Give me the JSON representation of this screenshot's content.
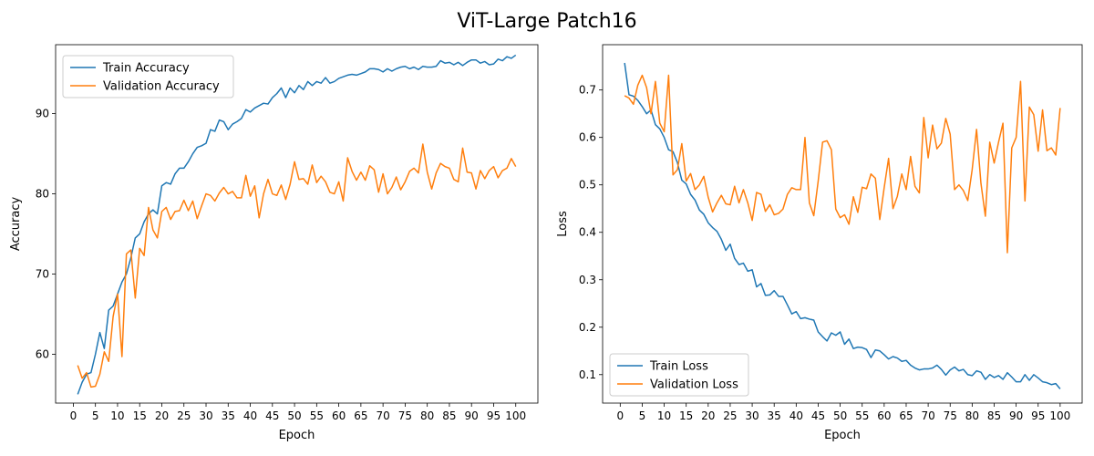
{
  "figure": {
    "suptitle": "ViT-Large Patch16"
  },
  "colors": {
    "train": "#1f77b4",
    "validation": "#ff7f0e"
  },
  "chart_data": [
    {
      "type": "line",
      "xlabel": "Epoch",
      "ylabel": "Accuracy",
      "xlim": [
        -4,
        105
      ],
      "ylim": [
        53.9,
        98.6
      ],
      "xticks": [
        0,
        5,
        10,
        15,
        20,
        25,
        30,
        35,
        40,
        45,
        50,
        55,
        60,
        65,
        70,
        75,
        80,
        85,
        90,
        95,
        100
      ],
      "yticks": [
        60,
        70,
        80,
        90
      ],
      "legend_position": "top-left",
      "grid": false,
      "series": [
        {
          "name": "Train Accuracy",
          "color": "#1f77b4",
          "x": [
            1,
            2,
            3,
            4,
            5,
            6,
            7,
            8,
            9,
            10,
            11,
            12,
            13,
            14,
            15,
            16,
            17,
            18,
            19,
            20,
            21,
            22,
            23,
            24,
            25,
            26,
            27,
            28,
            29,
            30,
            31,
            32,
            33,
            34,
            35,
            36,
            37,
            38,
            39,
            40,
            41,
            42,
            43,
            44,
            45,
            46,
            47,
            48,
            49,
            50,
            51,
            52,
            53,
            54,
            55,
            56,
            57,
            58,
            59,
            60,
            61,
            62,
            63,
            64,
            65,
            66,
            67,
            68,
            69,
            70,
            71,
            72,
            73,
            74,
            75,
            76,
            77,
            78,
            79,
            80,
            81,
            82,
            83,
            84,
            85,
            86,
            87,
            88,
            89,
            90,
            91,
            92,
            93,
            94,
            95,
            96,
            97,
            98,
            99,
            100
          ],
          "y": [
            55.0,
            56.5,
            57.5,
            57.7,
            60.0,
            62.7,
            60.7,
            65.5,
            66.0,
            67.5,
            69.0,
            70.0,
            72.0,
            74.5,
            75.0,
            76.5,
            77.5,
            78.0,
            77.5,
            81.0,
            81.4,
            81.2,
            82.5,
            83.2,
            83.2,
            84.0,
            85.0,
            85.8,
            86.0,
            86.3,
            88.0,
            87.8,
            89.2,
            89.0,
            88.0,
            88.7,
            89.0,
            89.4,
            90.5,
            90.2,
            90.7,
            91.0,
            91.3,
            91.2,
            92.0,
            92.5,
            93.2,
            92.0,
            93.2,
            92.6,
            93.5,
            93.0,
            94.0,
            93.5,
            94.0,
            93.8,
            94.5,
            93.8,
            94.0,
            94.4,
            94.6,
            94.8,
            94.9,
            94.8,
            95.0,
            95.2,
            95.6,
            95.6,
            95.5,
            95.2,
            95.6,
            95.3,
            95.6,
            95.8,
            95.9,
            95.6,
            95.8,
            95.5,
            95.9,
            95.8,
            95.8,
            95.9,
            96.6,
            96.3,
            96.4,
            96.1,
            96.4,
            96.0,
            96.4,
            96.7,
            96.7,
            96.3,
            96.5,
            96.1,
            96.2,
            96.8,
            96.6,
            97.1,
            96.9,
            97.3
          ]
        },
        {
          "name": "Validation Accuracy",
          "color": "#ff7f0e",
          "x": [
            1,
            2,
            3,
            4,
            5,
            6,
            7,
            8,
            9,
            10,
            11,
            12,
            13,
            14,
            15,
            16,
            17,
            18,
            19,
            20,
            21,
            22,
            23,
            24,
            25,
            26,
            27,
            28,
            29,
            30,
            31,
            32,
            33,
            34,
            35,
            36,
            37,
            38,
            39,
            40,
            41,
            42,
            43,
            44,
            45,
            46,
            47,
            48,
            49,
            50,
            51,
            52,
            53,
            54,
            55,
            56,
            57,
            58,
            59,
            60,
            61,
            62,
            63,
            64,
            65,
            66,
            67,
            68,
            69,
            70,
            71,
            72,
            73,
            74,
            75,
            76,
            77,
            78,
            79,
            80,
            81,
            82,
            83,
            84,
            85,
            86,
            87,
            88,
            89,
            90,
            91,
            92,
            93,
            94,
            95,
            96,
            97,
            98,
            99,
            100
          ],
          "y": [
            58.6,
            57.0,
            57.7,
            55.9,
            56.0,
            57.5,
            60.3,
            59.1,
            64.7,
            67.5,
            59.7,
            72.5,
            73.0,
            67.0,
            73.2,
            72.3,
            78.3,
            75.5,
            74.5,
            77.8,
            78.3,
            76.8,
            77.8,
            77.9,
            79.2,
            77.9,
            79.1,
            76.9,
            78.5,
            80.0,
            79.8,
            79.1,
            80.1,
            80.8,
            80.0,
            80.3,
            79.5,
            79.5,
            82.3,
            79.7,
            81.0,
            77.0,
            80.0,
            81.8,
            80.0,
            79.8,
            81.1,
            79.3,
            81.2,
            84.0,
            81.8,
            81.9,
            81.2,
            83.6,
            81.4,
            82.2,
            81.5,
            80.2,
            80.0,
            81.5,
            79.1,
            84.5,
            82.8,
            81.7,
            82.7,
            81.7,
            83.5,
            83.0,
            80.2,
            82.5,
            80.0,
            80.8,
            82.1,
            80.5,
            81.5,
            82.8,
            83.2,
            82.6,
            86.2,
            82.7,
            80.6,
            82.6,
            83.8,
            83.4,
            83.2,
            81.8,
            81.5,
            85.7,
            82.7,
            82.6,
            80.6,
            82.9,
            81.9,
            82.9,
            83.4,
            82.0,
            82.9,
            83.2,
            84.4,
            83.4
          ]
        }
      ]
    },
    {
      "type": "line",
      "xlabel": "Epoch",
      "ylabel": "Loss",
      "xlim": [
        -4,
        105
      ],
      "ylim": [
        0.04,
        0.7955
      ],
      "xticks": [
        0,
        5,
        10,
        15,
        20,
        25,
        30,
        35,
        40,
        45,
        50,
        55,
        60,
        65,
        70,
        75,
        80,
        85,
        90,
        95,
        100
      ],
      "yticks": [
        0.1,
        0.2,
        0.3,
        0.4,
        0.5,
        0.6,
        0.7
      ],
      "legend_position": "bottom-left",
      "grid": false,
      "series": [
        {
          "name": "Train Loss",
          "color": "#1f77b4",
          "x": [
            1,
            2,
            3,
            4,
            5,
            6,
            7,
            8,
            9,
            10,
            11,
            12,
            13,
            14,
            15,
            16,
            17,
            18,
            19,
            20,
            21,
            22,
            23,
            24,
            25,
            26,
            27,
            28,
            29,
            30,
            31,
            32,
            33,
            34,
            35,
            36,
            37,
            38,
            39,
            40,
            41,
            42,
            43,
            44,
            45,
            46,
            47,
            48,
            49,
            50,
            51,
            52,
            53,
            54,
            55,
            56,
            57,
            58,
            59,
            60,
            61,
            62,
            63,
            64,
            65,
            66,
            67,
            68,
            69,
            70,
            71,
            72,
            73,
            74,
            75,
            76,
            77,
            78,
            79,
            80,
            81,
            82,
            83,
            84,
            85,
            86,
            87,
            88,
            89,
            90,
            91,
            92,
            93,
            94,
            95,
            96,
            97,
            98,
            99,
            100
          ],
          "y": [
            0.757,
            0.69,
            0.687,
            0.678,
            0.665,
            0.65,
            0.658,
            0.627,
            0.618,
            0.6,
            0.574,
            0.57,
            0.547,
            0.51,
            0.502,
            0.48,
            0.468,
            0.447,
            0.438,
            0.42,
            0.41,
            0.402,
            0.385,
            0.362,
            0.375,
            0.345,
            0.332,
            0.335,
            0.318,
            0.321,
            0.285,
            0.292,
            0.267,
            0.268,
            0.277,
            0.265,
            0.265,
            0.247,
            0.228,
            0.233,
            0.218,
            0.22,
            0.217,
            0.215,
            0.19,
            0.18,
            0.171,
            0.188,
            0.183,
            0.19,
            0.164,
            0.175,
            0.155,
            0.158,
            0.157,
            0.153,
            0.136,
            0.152,
            0.15,
            0.142,
            0.133,
            0.138,
            0.135,
            0.128,
            0.13,
            0.12,
            0.114,
            0.11,
            0.112,
            0.112,
            0.114,
            0.12,
            0.111,
            0.099,
            0.11,
            0.116,
            0.108,
            0.111,
            0.1,
            0.098,
            0.108,
            0.105,
            0.09,
            0.1,
            0.094,
            0.098,
            0.09,
            0.104,
            0.095,
            0.085,
            0.085,
            0.1,
            0.088,
            0.1,
            0.093,
            0.085,
            0.083,
            0.079,
            0.081,
            0.07
          ]
        },
        {
          "name": "Validation Loss",
          "color": "#ff7f0e",
          "x": [
            1,
            2,
            3,
            4,
            5,
            6,
            7,
            8,
            9,
            10,
            11,
            12,
            13,
            14,
            15,
            16,
            17,
            18,
            19,
            20,
            21,
            22,
            23,
            24,
            25,
            26,
            27,
            28,
            29,
            30,
            31,
            32,
            33,
            34,
            35,
            36,
            37,
            38,
            39,
            40,
            41,
            42,
            43,
            44,
            45,
            46,
            47,
            48,
            49,
            50,
            51,
            52,
            53,
            54,
            55,
            56,
            57,
            58,
            59,
            60,
            61,
            62,
            63,
            64,
            65,
            66,
            67,
            68,
            69,
            70,
            71,
            72,
            73,
            74,
            75,
            76,
            77,
            78,
            79,
            80,
            81,
            82,
            83,
            84,
            85,
            86,
            87,
            88,
            89,
            90,
            91,
            92,
            93,
            94,
            95,
            96,
            97,
            98,
            99,
            100
          ],
          "y": [
            0.688,
            0.683,
            0.67,
            0.71,
            0.731,
            0.705,
            0.65,
            0.718,
            0.63,
            0.612,
            0.731,
            0.521,
            0.532,
            0.587,
            0.508,
            0.524,
            0.49,
            0.5,
            0.518,
            0.474,
            0.443,
            0.462,
            0.478,
            0.46,
            0.458,
            0.497,
            0.462,
            0.49,
            0.462,
            0.425,
            0.484,
            0.48,
            0.444,
            0.458,
            0.437,
            0.44,
            0.449,
            0.48,
            0.494,
            0.49,
            0.49,
            0.6,
            0.462,
            0.435,
            0.508,
            0.59,
            0.593,
            0.574,
            0.449,
            0.431,
            0.437,
            0.417,
            0.475,
            0.442,
            0.495,
            0.492,
            0.523,
            0.514,
            0.427,
            0.494,
            0.556,
            0.45,
            0.476,
            0.523,
            0.49,
            0.56,
            0.497,
            0.483,
            0.642,
            0.557,
            0.626,
            0.576,
            0.588,
            0.64,
            0.607,
            0.49,
            0.5,
            0.488,
            0.467,
            0.532,
            0.617,
            0.503,
            0.434,
            0.59,
            0.546,
            0.59,
            0.63,
            0.357,
            0.578,
            0.6,
            0.718,
            0.466,
            0.664,
            0.648,
            0.571,
            0.658,
            0.572,
            0.578,
            0.563,
            0.662
          ]
        }
      ]
    }
  ]
}
